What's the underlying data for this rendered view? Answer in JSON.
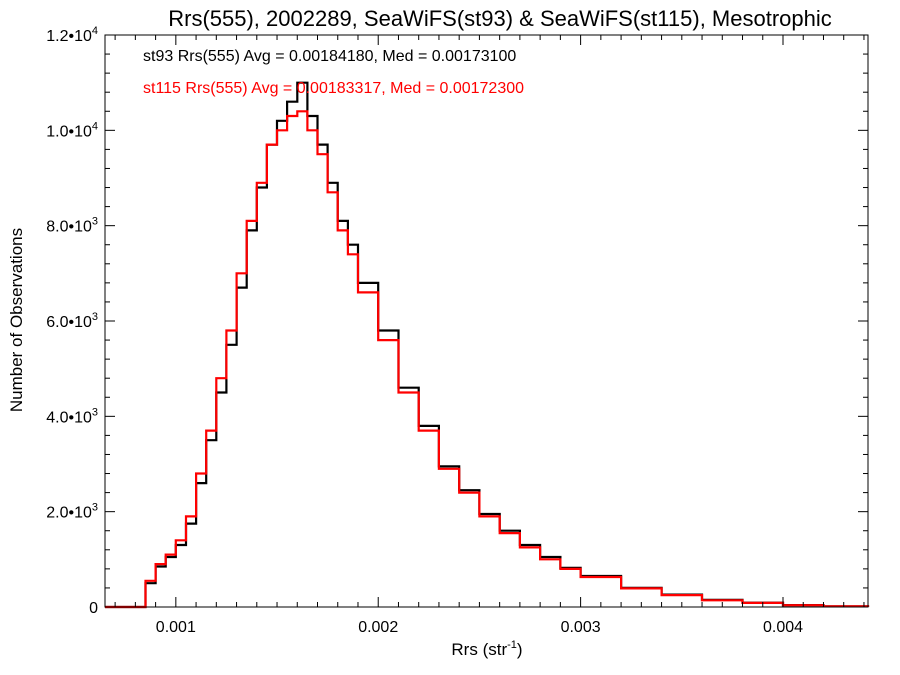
{
  "chart_data": {
    "type": "line",
    "title": "Rrs(555), 2002289, SeaWiFS(st93) & SeaWiFS(st115), Mesotrophic",
    "xlabel": "Rrs (str",
    "xlabel_sup": "-1",
    "xlabel_end": ")",
    "ylabel": "Number of Observations",
    "xlim": [
      0.00065,
      0.00442
    ],
    "ylim": [
      0,
      12000
    ],
    "x_ticks": [
      {
        "value": 0.001,
        "label": "0.001"
      },
      {
        "value": 0.002,
        "label": "0.002"
      },
      {
        "value": 0.003,
        "label": "0.003"
      },
      {
        "value": 0.004,
        "label": "0.004"
      }
    ],
    "y_ticks": [
      {
        "value": 0,
        "mant": "0",
        "exp": ""
      },
      {
        "value": 2000,
        "mant": "2.0•10",
        "exp": "3"
      },
      {
        "value": 4000,
        "mant": "4.0•10",
        "exp": "3"
      },
      {
        "value": 6000,
        "mant": "6.0•10",
        "exp": "3"
      },
      {
        "value": 8000,
        "mant": "8.0•10",
        "exp": "3"
      },
      {
        "value": 10000,
        "mant": "1.0•10",
        "exp": "4"
      },
      {
        "value": 12000,
        "mant": "1.2•10",
        "exp": "4"
      }
    ],
    "grid": false,
    "legend_position": "top-left",
    "series": [
      {
        "name": "st93",
        "label": "st93 Rrs(555) Avg = 0.00184180, Med = 0.00173100",
        "color": "#000000",
        "x": [
          0.00065,
          0.0008,
          0.00085,
          0.0009,
          0.00095,
          0.001,
          0.00105,
          0.0011,
          0.00115,
          0.0012,
          0.00125,
          0.0013,
          0.00135,
          0.0014,
          0.00145,
          0.0015,
          0.00155,
          0.0016,
          0.00165,
          0.0017,
          0.00175,
          0.0018,
          0.00185,
          0.0019,
          0.002,
          0.0021,
          0.0022,
          0.0023,
          0.0024,
          0.0025,
          0.0026,
          0.0027,
          0.0028,
          0.0029,
          0.003,
          0.0032,
          0.0034,
          0.0036,
          0.0038,
          0.004,
          0.0042,
          0.00442
        ],
        "y": [
          0,
          0,
          500,
          850,
          1050,
          1300,
          1750,
          2600,
          3500,
          4500,
          5500,
          6700,
          7900,
          8800,
          9700,
          10200,
          10600,
          11000,
          10300,
          9700,
          8900,
          8100,
          7600,
          6800,
          5800,
          4600,
          3800,
          2950,
          2450,
          1950,
          1600,
          1300,
          1050,
          820,
          650,
          400,
          260,
          150,
          90,
          40,
          15,
          0
        ]
      },
      {
        "name": "st115",
        "label": "st115 Rrs(555) Avg = 0.00183317, Med = 0.00172300",
        "color": "#ff0000",
        "x": [
          0.00065,
          0.0008,
          0.00085,
          0.0009,
          0.00095,
          0.001,
          0.00105,
          0.0011,
          0.00115,
          0.0012,
          0.00125,
          0.0013,
          0.00135,
          0.0014,
          0.00145,
          0.0015,
          0.00155,
          0.0016,
          0.00165,
          0.0017,
          0.00175,
          0.0018,
          0.00185,
          0.0019,
          0.002,
          0.0021,
          0.0022,
          0.0023,
          0.0024,
          0.0025,
          0.0026,
          0.0027,
          0.0028,
          0.0029,
          0.003,
          0.0032,
          0.0034,
          0.0036,
          0.0038,
          0.004,
          0.0042,
          0.00442
        ],
        "y": [
          0,
          0,
          550,
          900,
          1100,
          1400,
          1900,
          2800,
          3700,
          4800,
          5800,
          7000,
          8100,
          8900,
          9700,
          10000,
          10300,
          10400,
          10000,
          9500,
          8700,
          7900,
          7400,
          6600,
          5600,
          4500,
          3700,
          2900,
          2400,
          1900,
          1550,
          1250,
          1000,
          800,
          630,
          390,
          250,
          140,
          85,
          38,
          14,
          0
        ]
      }
    ]
  }
}
